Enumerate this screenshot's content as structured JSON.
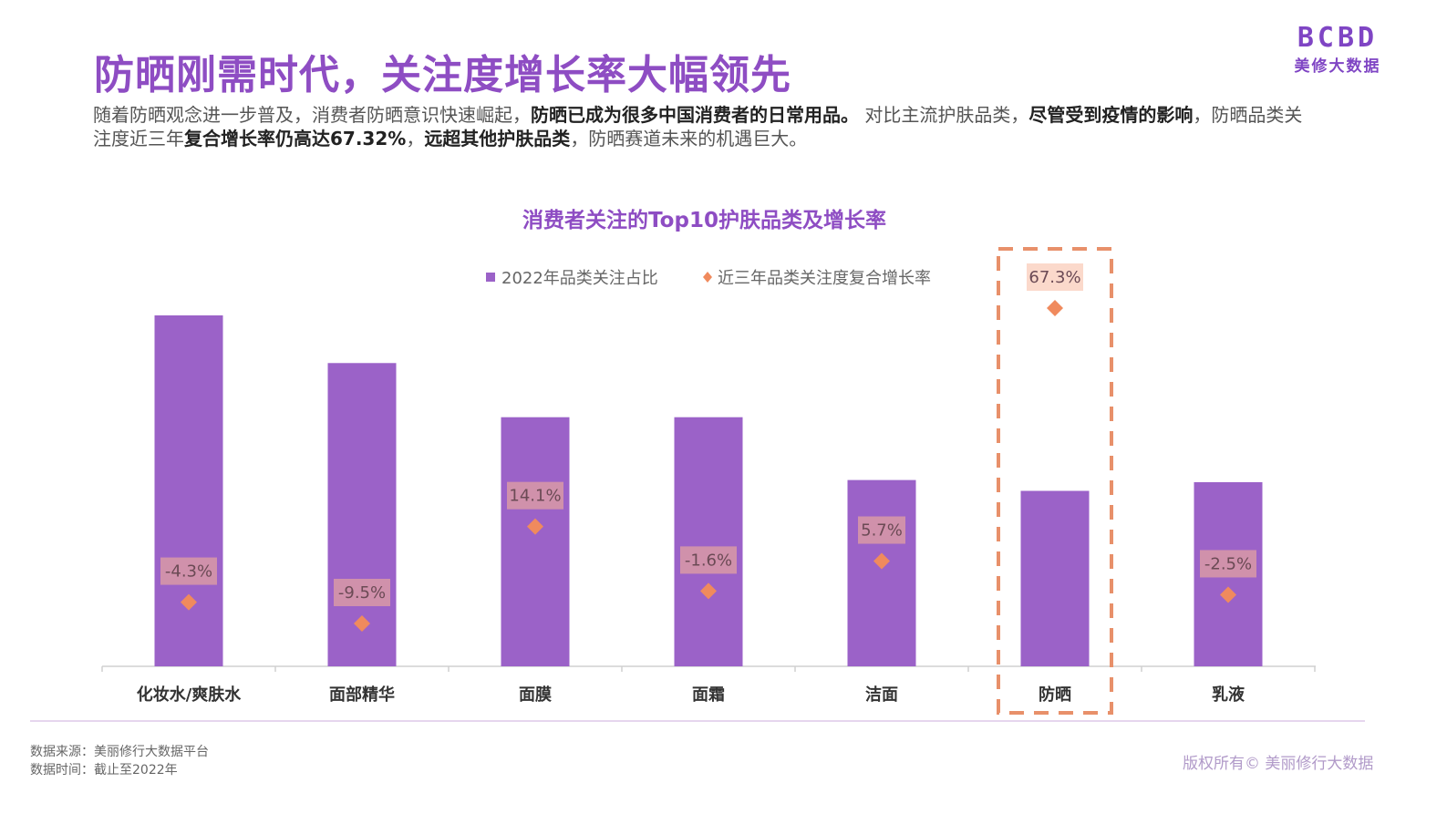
{
  "header": {
    "title": "防晒刚需时代，关注度增长率大幅领先",
    "logo_mark": "BCBD",
    "logo_name": "美修大数据"
  },
  "description": {
    "p1": "随着防晒观念进一步普及，消费者防晒意识快速崛起，",
    "b1": "防晒已成为很多中国消费者的日常用品。",
    "p2": " 对比主流护肤品类，",
    "b2": "尽管受到疫情的影响",
    "p3": "，防晒品类关注度近三年",
    "b3": "复合增长率仍高达67.32%",
    "p4": "，",
    "b4": "远超其他护肤品类",
    "p5": "，防晒赛道未来的机遇巨大。"
  },
  "chart_data": {
    "type": "bar",
    "title": "消费者关注的Top10护肤品类及增长率",
    "categories": [
      "化妆水/爽肤水",
      "面部精华",
      "面膜",
      "面霜",
      "洁面",
      "防晒",
      "乳液"
    ],
    "series": [
      {
        "name": "2022年品类关注占比",
        "type": "bar",
        "color": "#9b62c8",
        "values": [
          16.2,
          14.0,
          11.5,
          11.5,
          8.6,
          8.1,
          8.5
        ]
      },
      {
        "name": "近三年品类关注度复合增长率",
        "type": "scatter",
        "marker": "diamond",
        "color": "#f08a5d",
        "values": [
          -4.3,
          -9.5,
          14.1,
          -1.6,
          5.7,
          67.3,
          -2.5
        ],
        "labels": [
          "-4.3%",
          "-9.5%",
          "14.1%",
          "-1.6%",
          "5.7%",
          "67.3%",
          "-2.5%"
        ]
      }
    ],
    "highlight_category": "防晒",
    "legend_position": "top-center",
    "grid": false
  },
  "footer": {
    "source": "数据来源：美丽修行大数据平台",
    "time": "数据时间：截止至2022年",
    "copyright": "版权所有© 美丽修行大数据"
  },
  "colors": {
    "accent": "#8e4dc3",
    "bar": "#9b62c8",
    "marker": "#f08a5d",
    "highlight": "#e8906a"
  }
}
